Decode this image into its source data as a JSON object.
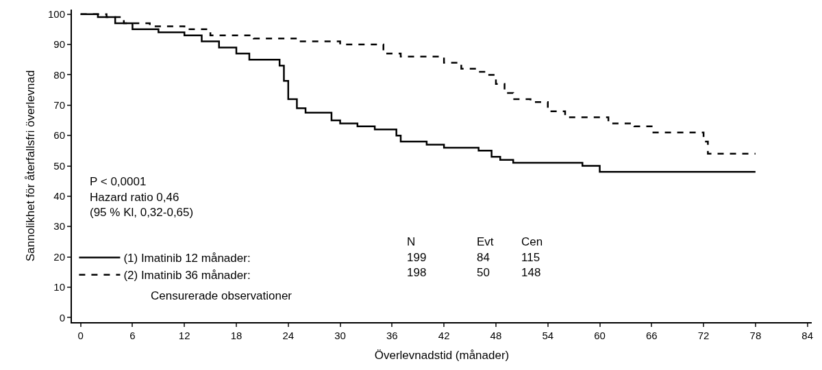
{
  "chart_data": {
    "type": "step",
    "xlabel": "Överlevnadstid (månader)",
    "ylabel": "Sannolikhet för återfallsfri överlevnad",
    "xlim": [
      -1,
      84.5
    ],
    "ylim": [
      -1.5,
      101.5
    ],
    "xticks": [
      0,
      6,
      12,
      18,
      24,
      30,
      36,
      42,
      48,
      54,
      60,
      66,
      72,
      78,
      84
    ],
    "yticks": [
      0,
      10,
      20,
      30,
      40,
      50,
      60,
      70,
      80,
      90,
      100
    ],
    "legend": "bottom left",
    "marker": "none",
    "series": [
      {
        "name": "(1) Imatinib 12 månader:",
        "color": "#000000",
        "line_style": "solid",
        "x": [
          0,
          2,
          4,
          6,
          9,
          12,
          14,
          16,
          18,
          19.5,
          22.5,
          23,
          23.5,
          24,
          25,
          26,
          28,
          29,
          30,
          32,
          34,
          36.5,
          37,
          40,
          42,
          46,
          47.5,
          48.5,
          50,
          56,
          58,
          60,
          78
        ],
        "values": [
          100,
          99,
          97,
          95,
          94,
          93,
          91,
          89,
          87,
          85,
          85,
          83,
          78,
          72,
          69,
          67.5,
          67.5,
          65,
          64,
          63,
          62,
          60,
          58,
          57,
          56,
          55,
          53,
          52,
          51,
          51,
          50,
          48,
          48
        ]
      },
      {
        "name": "(2) Imatinib 36 månader:",
        "color": "#000000",
        "line_style": "dashed",
        "x": [
          0,
          3,
          5,
          8,
          12,
          15,
          20,
          25,
          30,
          35,
          37,
          40,
          42,
          44,
          46,
          47,
          48,
          49,
          50,
          52,
          54,
          56,
          60,
          61,
          64,
          66,
          71,
          72,
          72.5,
          78
        ],
        "values": [
          100,
          99,
          97,
          96,
          95,
          93,
          92,
          91,
          90,
          87,
          86,
          86,
          84,
          82,
          81,
          80,
          77,
          74,
          72,
          71,
          68,
          66,
          66,
          64,
          63,
          61,
          61,
          58,
          54,
          54
        ]
      }
    ],
    "annotations": [
      "P < 0,0001",
      "Hazard ratio 0,46",
      "(95 % Kl, 0,32-0,65)",
      "N",
      "Evt",
      "Cen",
      "199",
      "84",
      "115",
      "198",
      "50",
      "148",
      "Censurerade observationer"
    ]
  }
}
